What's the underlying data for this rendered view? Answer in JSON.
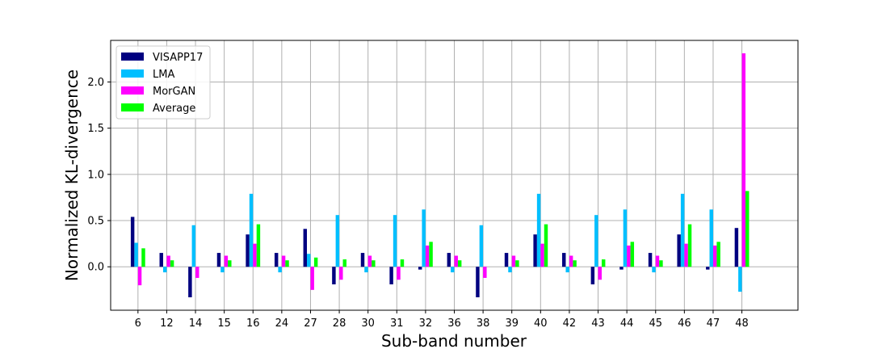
{
  "chart_data": {
    "type": "bar",
    "title": "",
    "xlabel": "Sub-band number",
    "ylabel": "Normalized KL-divergence",
    "categories": [
      "6",
      "12",
      "14",
      "15",
      "16",
      "24",
      "27",
      "28",
      "30",
      "31",
      "32",
      "36",
      "38",
      "39",
      "40",
      "42",
      "43",
      "44",
      "45",
      "46",
      "47",
      "48"
    ],
    "ylim": [
      -0.47,
      2.45
    ],
    "yticks": [
      "0.0",
      "0.5",
      "1.0",
      "1.5",
      "2.0"
    ],
    "grid": true,
    "legend_position": "top-left",
    "series": [
      {
        "name": "VISAPP17",
        "color": "#000080",
        "values": [
          0.54,
          0.15,
          -0.33,
          0.15,
          0.35,
          0.15,
          0.41,
          -0.19,
          0.15,
          -0.19,
          -0.03,
          0.15,
          -0.33,
          0.15,
          0.35,
          0.15,
          -0.19,
          -0.03,
          0.15,
          0.35,
          -0.03,
          0.42
        ]
      },
      {
        "name": "LMA",
        "color": "#00bfff",
        "values": [
          0.26,
          -0.06,
          0.45,
          -0.06,
          0.79,
          -0.06,
          0.14,
          0.56,
          -0.06,
          0.56,
          0.62,
          -0.06,
          0.45,
          -0.06,
          0.79,
          -0.06,
          0.56,
          0.62,
          -0.06,
          0.79,
          0.62,
          -0.27
        ]
      },
      {
        "name": "MorGAN",
        "color": "#ff00ff",
        "values": [
          -0.2,
          0.12,
          -0.12,
          0.12,
          0.25,
          0.12,
          -0.25,
          -0.14,
          0.12,
          -0.14,
          0.23,
          0.12,
          -0.12,
          0.12,
          0.25,
          0.12,
          -0.14,
          0.23,
          0.12,
          0.25,
          0.23,
          2.31
        ]
      },
      {
        "name": "Average",
        "color": "#00ff00",
        "values": [
          0.2,
          0.07,
          0.0,
          0.07,
          0.46,
          0.07,
          0.1,
          0.08,
          0.07,
          0.08,
          0.27,
          0.07,
          0.0,
          0.07,
          0.46,
          0.07,
          0.08,
          0.27,
          0.07,
          0.46,
          0.27,
          0.82
        ]
      }
    ]
  }
}
